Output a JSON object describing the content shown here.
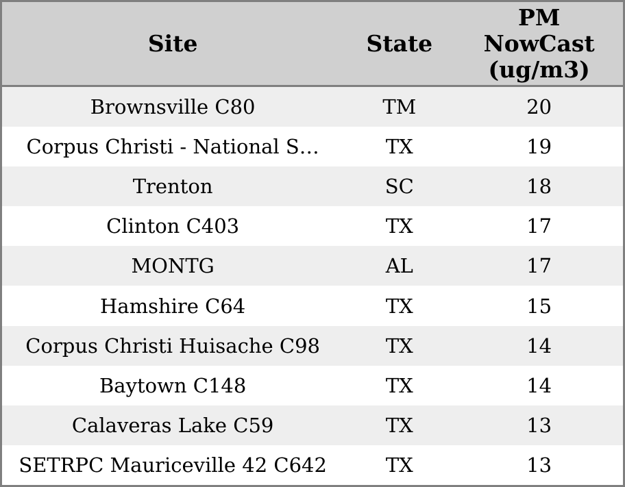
{
  "colors": {
    "header_bg": "#d0d0d0",
    "row_alt_bg": "#eeeeee",
    "row_bg": "#ffffff",
    "border": "#7f7f7f",
    "text": "#000000"
  },
  "header": {
    "site_label": "Site",
    "state_label": "State",
    "pm_label": "PM\nNowCast\n(ug/m3)"
  },
  "chart_data": {
    "type": "table",
    "columns": [
      "Site",
      "State",
      "PM NowCast (ug/m3)"
    ],
    "rows": [
      {
        "site": "Brownsville C80",
        "state": "TM",
        "pm": 20
      },
      {
        "site": "Corpus Christi - National S…",
        "state": "TX",
        "pm": 19
      },
      {
        "site": "Trenton",
        "state": "SC",
        "pm": 18
      },
      {
        "site": "Clinton C403",
        "state": "TX",
        "pm": 17
      },
      {
        "site": "MONTG",
        "state": "AL",
        "pm": 17
      },
      {
        "site": "Hamshire C64",
        "state": "TX",
        "pm": 15
      },
      {
        "site": "Corpus Christi Huisache C98",
        "state": "TX",
        "pm": 14
      },
      {
        "site": "Baytown C148",
        "state": "TX",
        "pm": 14
      },
      {
        "site": "Calaveras Lake C59",
        "state": "TX",
        "pm": 13
      },
      {
        "site": "SETRPC Mauriceville 42 C642",
        "state": "TX",
        "pm": 13
      }
    ]
  }
}
